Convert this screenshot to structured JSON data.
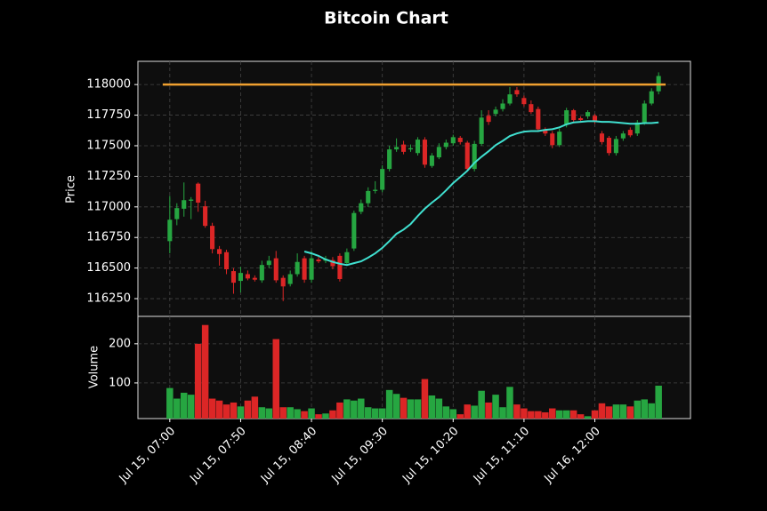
{
  "chart_data": {
    "type": "candlestick",
    "title": "Bitcoin Chart",
    "ylabel": "Price",
    "volume_ylabel": "Volume",
    "up_color": "#26a641",
    "down_color": "#dc2626",
    "grid": true,
    "ylim": [
      116105,
      118190
    ],
    "yticks": [
      116250,
      116500,
      116750,
      117000,
      117250,
      117500,
      117750,
      118000
    ],
    "volume_ylim": [
      9,
      270
    ],
    "volume_yticks": [
      100,
      200
    ],
    "xlim": [
      -4.5,
      73.5
    ],
    "xticks": [
      {
        "value": 0,
        "label": "Jul 15, 07:00"
      },
      {
        "value": 10,
        "label": "Jul 15, 07:50"
      },
      {
        "value": 20,
        "label": "Jul 15, 08:40"
      },
      {
        "value": 30,
        "label": "Jul 15, 09:30"
      },
      {
        "value": 40,
        "label": "Jul 15, 10:20"
      },
      {
        "value": 50,
        "label": "Jul 15, 11:10"
      },
      {
        "value": 60,
        "label": "Jul 16, 12:00"
      }
    ],
    "open": [
      116720,
      116900,
      116985,
      117050,
      117190,
      117005,
      116845,
      116655,
      116630,
      116475,
      116395,
      116450,
      116420,
      116400,
      116525,
      116580,
      116420,
      116370,
      116450,
      116580,
      116405,
      116570,
      116560,
      116565,
      116600,
      116540,
      116660,
      116960,
      117030,
      117130,
      117140,
      117310,
      117470,
      117510,
      117470,
      117440,
      117550,
      117335,
      117405,
      117490,
      117520,
      117565,
      117525,
      117310,
      117515,
      117745,
      117760,
      117800,
      117845,
      117955,
      117890,
      117840,
      117800,
      117635,
      117600,
      117505,
      117675,
      117790,
      117725,
      117740,
      117745,
      117600,
      117565,
      117440,
      117560,
      117630,
      117600,
      117690,
      117845,
      117945
    ],
    "high": [
      117090,
      117030,
      117200,
      117080,
      117200,
      117050,
      116870,
      116680,
      116650,
      116500,
      116510,
      116480,
      116440,
      116560,
      116600,
      116640,
      116440,
      116480,
      116620,
      116600,
      116640,
      116590,
      116600,
      116590,
      116620,
      116660,
      116970,
      117060,
      117160,
      117210,
      117340,
      117500,
      117560,
      117540,
      117510,
      117570,
      117570,
      117440,
      117520,
      117550,
      117590,
      117580,
      117540,
      117540,
      117790,
      117790,
      117820,
      117880,
      117980,
      117980,
      117910,
      117870,
      117820,
      117650,
      117620,
      117640,
      117810,
      117800,
      117740,
      117790,
      117760,
      117620,
      117580,
      117580,
      117620,
      117650,
      117710,
      117870,
      117970,
      118100
    ],
    "low": [
      116620,
      116850,
      116920,
      116900,
      116960,
      116830,
      116620,
      116520,
      116450,
      116290,
      116300,
      116400,
      116390,
      116380,
      116500,
      116380,
      116230,
      116350,
      116430,
      116380,
      116380,
      116540,
      116540,
      116490,
      116390,
      116520,
      116640,
      116940,
      117000,
      117110,
      117120,
      117290,
      117450,
      117430,
      117450,
      117420,
      117320,
      117320,
      117390,
      117470,
      117500,
      117510,
      117290,
      117290,
      117500,
      117670,
      117740,
      117780,
      117830,
      117900,
      117820,
      117760,
      117620,
      117580,
      117480,
      117490,
      117650,
      117690,
      117690,
      117720,
      117680,
      117510,
      117420,
      117420,
      117540,
      117570,
      117580,
      117670,
      117830,
      117920
    ],
    "close": [
      116895,
      116990,
      117055,
      117060,
      117035,
      116845,
      116655,
      116615,
      116490,
      116380,
      116460,
      116415,
      116405,
      116525,
      116560,
      116400,
      116350,
      116450,
      116550,
      116405,
      116580,
      116555,
      116575,
      116515,
      116410,
      116630,
      116950,
      117030,
      117130,
      117140,
      117310,
      117470,
      117490,
      117450,
      117480,
      117550,
      117345,
      117420,
      117490,
      117525,
      117570,
      117530,
      117310,
      117515,
      117730,
      117695,
      117795,
      117845,
      117920,
      117920,
      117840,
      117775,
      117635,
      117600,
      117505,
      117615,
      117790,
      117710,
      117710,
      117775,
      117695,
      117530,
      117440,
      117555,
      117600,
      117585,
      117690,
      117845,
      117945,
      118070
    ],
    "volume": [
      87,
      60,
      75,
      70,
      200,
      248,
      60,
      55,
      45,
      50,
      40,
      55,
      65,
      38,
      35,
      212,
      38,
      38,
      33,
      28,
      35,
      20,
      22,
      30,
      50,
      58,
      55,
      60,
      38,
      35,
      35,
      82,
      72,
      62,
      58,
      58,
      110,
      68,
      60,
      40,
      33,
      20,
      45,
      42,
      80,
      50,
      70,
      38,
      90,
      45,
      35,
      28,
      28,
      25,
      35,
      30,
      30,
      30,
      20,
      15,
      30,
      48,
      40,
      45,
      45,
      40,
      55,
      58,
      48,
      93
    ],
    "ma": {
      "color": "#40e0d0",
      "values": [
        null,
        null,
        null,
        null,
        null,
        null,
        null,
        null,
        null,
        null,
        null,
        null,
        null,
        null,
        null,
        null,
        null,
        null,
        null,
        116635,
        116620,
        116600,
        116570,
        116550,
        116535,
        116525,
        116540,
        116555,
        116585,
        116620,
        116665,
        116720,
        116780,
        116815,
        116860,
        116925,
        116985,
        117035,
        117080,
        117135,
        117195,
        117245,
        117295,
        117360,
        117410,
        117455,
        117505,
        117540,
        117580,
        117600,
        117615,
        117620,
        117620,
        117630,
        117635,
        117650,
        117675,
        117690,
        117695,
        117700,
        117700,
        117695,
        117695,
        117690,
        117685,
        117680,
        117680,
        117685,
        117685,
        117690
      ]
    },
    "hline": {
      "value": 118000,
      "color": "#f0a030"
    }
  }
}
